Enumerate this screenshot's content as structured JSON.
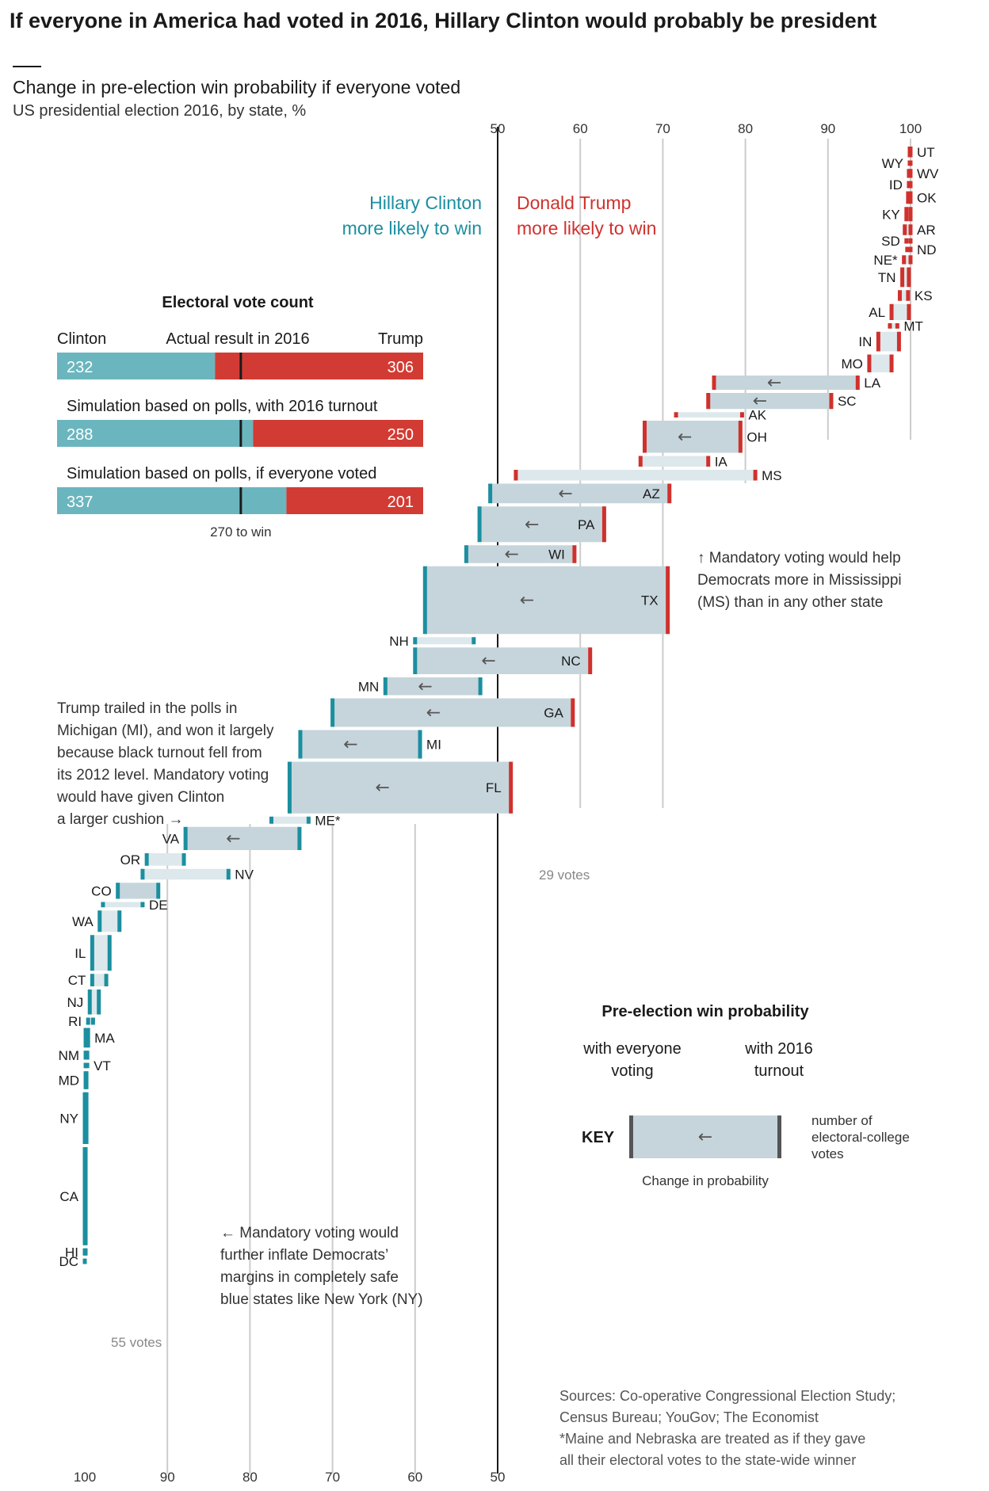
{
  "title": "If everyone in America had voted in 2016, Hillary Clinton would probably be president",
  "subtitle": "Change in pre-election win probability if everyone voted",
  "subtitle2": "US presidential election 2016, by state, %",
  "colors": {
    "clinton": "#1b8fa0",
    "trump": "#d0312d",
    "bar_fill": "#c6d5db",
    "bar_fill_light": "#dde8ec",
    "clinton_ev": "#6bb6be",
    "trump_ev": "#d23b33",
    "grid": "#cccccc",
    "axis50": "#1a1a1a"
  },
  "side_labels": {
    "clinton": [
      "Hillary Clinton",
      "more likely to win"
    ],
    "trump": [
      "Donald Trump",
      "more likely to win"
    ]
  },
  "electoral": {
    "heading": "Electoral vote count",
    "clinton_label": "Clinton",
    "trump_label": "Trump",
    "win_label": "270 to win",
    "total": 538,
    "threshold": 270,
    "rows": [
      {
        "label": "Actual result in 2016",
        "clinton": 232,
        "trump": 306
      },
      {
        "label": "Simulation based on polls, with 2016 turnout",
        "clinton": 288,
        "trump": 250
      },
      {
        "label": "Simulation based on polls, if everyone voted",
        "clinton": 337,
        "trump": 201
      }
    ]
  },
  "annotations": {
    "ms": [
      "↑ Mandatory voting would help",
      "Democrats more in Mississippi",
      "(MS) than in any other state"
    ],
    "mi": [
      "Trump trailed in the polls in",
      "Michigan (MI), and won it largely",
      "because black turnout fell from",
      "its 2012 level. Mandatory voting",
      "would have given Clinton",
      "a larger cushion →"
    ],
    "ny": [
      "← Mandatory voting would",
      "further inflate Democrats’",
      "margins in completely safe",
      "blue states like New York (NY)"
    ],
    "fl_votes": "29 votes",
    "ca_votes": "55 votes"
  },
  "key": {
    "heading": "Pre-election win probability",
    "left": [
      "with everyone",
      "voting"
    ],
    "right": [
      "with 2016",
      "turnout"
    ],
    "label": "KEY",
    "votes": [
      "number of",
      "electoral-college",
      "votes"
    ],
    "change": "Change in probability"
  },
  "sources": [
    "Sources: Co-operative Congressional Election Study;",
    "Census Bureau; YouGov; The Economist",
    "*Maine and Nebraska are treated as if they gave",
    "all their electoral votes to the state-wide winner"
  ],
  "chart_data": {
    "type": "bar",
    "title": "Change in pre-election win probability if everyone voted",
    "subtitle": "US presidential election 2016, by state, %",
    "x_axis_top": {
      "ticks": [
        50,
        60,
        70,
        80,
        90,
        100
      ],
      "meaning": "Trump win probability"
    },
    "x_axis_bottom": {
      "ticks": [
        100,
        90,
        80,
        70,
        60,
        50
      ],
      "meaning": "Clinton win probability"
    },
    "states": [
      {
        "state": "UT",
        "turnout2016": 100,
        "everyone": 99.9,
        "ev": 6,
        "winner": "R"
      },
      {
        "state": "WY",
        "turnout2016": 100,
        "everyone": 99.9,
        "ev": 3,
        "winner": "R"
      },
      {
        "state": "WV",
        "turnout2016": 100,
        "everyone": 99.8,
        "ev": 5,
        "winner": "R"
      },
      {
        "state": "ID",
        "turnout2016": 100,
        "everyone": 99.8,
        "ev": 4,
        "winner": "R"
      },
      {
        "state": "OK",
        "turnout2016": 100,
        "everyone": 99.7,
        "ev": 7,
        "winner": "R"
      },
      {
        "state": "KY",
        "turnout2016": 100,
        "everyone": 99.5,
        "ev": 8,
        "winner": "R"
      },
      {
        "state": "AR",
        "turnout2016": 100,
        "everyone": 99.3,
        "ev": 6,
        "winner": "R"
      },
      {
        "state": "SD",
        "turnout2016": 100,
        "everyone": 99.5,
        "ev": 3,
        "winner": "R"
      },
      {
        "state": "ND",
        "turnout2016": 100,
        "everyone": 99.6,
        "ev": 3,
        "winner": "R"
      },
      {
        "state": "NE*",
        "turnout2016": 100,
        "everyone": 99.2,
        "ev": 5,
        "winner": "R"
      },
      {
        "state": "TN",
        "turnout2016": 99.8,
        "everyone": 99.0,
        "ev": 11,
        "winner": "R"
      },
      {
        "state": "KS",
        "turnout2016": 99.7,
        "everyone": 98.7,
        "ev": 6,
        "winner": "R"
      },
      {
        "state": "AL",
        "turnout2016": 99.8,
        "everyone": 97.7,
        "ev": 9,
        "winner": "R"
      },
      {
        "state": "MT",
        "turnout2016": 98.4,
        "everyone": 97.5,
        "ev": 3,
        "winner": "R"
      },
      {
        "state": "IN",
        "turnout2016": 98.6,
        "everyone": 96.1,
        "ev": 11,
        "winner": "R"
      },
      {
        "state": "MO",
        "turnout2016": 97.7,
        "everyone": 95.0,
        "ev": 10,
        "winner": "R"
      },
      {
        "state": "LA",
        "turnout2016": 93.6,
        "everyone": 76.2,
        "ev": 8,
        "winner": "R"
      },
      {
        "state": "SC",
        "turnout2016": 90.4,
        "everyone": 75.5,
        "ev": 9,
        "winner": "R"
      },
      {
        "state": "AK",
        "turnout2016": 79.6,
        "everyone": 71.6,
        "ev": 3,
        "winner": "R"
      },
      {
        "state": "OH",
        "turnout2016": 79.4,
        "everyone": 67.8,
        "ev": 18,
        "winner": "R"
      },
      {
        "state": "IA",
        "turnout2016": 75.5,
        "everyone": 67.3,
        "ev": 6,
        "winner": "R"
      },
      {
        "state": "MS",
        "turnout2016": 81.2,
        "everyone": 52.2,
        "ev": 6,
        "winner": "R"
      },
      {
        "state": "AZ",
        "turnout2016": 70.8,
        "everyone": 49.1,
        "ev": 11,
        "winner": "R"
      },
      {
        "state": "PA",
        "turnout2016": 62.9,
        "everyone": 47.8,
        "ev": 20,
        "winner": "R"
      },
      {
        "state": "WI",
        "turnout2016": 59.3,
        "everyone": 46.2,
        "ev": 10,
        "winner": "R"
      },
      {
        "state": "TX",
        "turnout2016": 70.6,
        "everyone": 41.2,
        "ev": 38,
        "winner": "R"
      },
      {
        "state": "NH",
        "turnout2016": 47.1,
        "everyone": 40.0,
        "ev": 4,
        "winner": "D"
      },
      {
        "state": "NC",
        "turnout2016": 61.2,
        "everyone": 40.0,
        "ev": 15,
        "winner": "R"
      },
      {
        "state": "MN",
        "turnout2016": 47.9,
        "everyone": 36.4,
        "ev": 10,
        "winner": "D"
      },
      {
        "state": "GA",
        "turnout2016": 59.1,
        "everyone": 30.0,
        "ev": 16,
        "winner": "R"
      },
      {
        "state": "MI",
        "turnout2016": 40.6,
        "everyone": 26.1,
        "ev": 16,
        "winner": "R"
      },
      {
        "state": "FL",
        "turnout2016": 51.6,
        "everyone": 24.8,
        "ev": 29,
        "winner": "R"
      },
      {
        "state": "ME*",
        "turnout2016": 27.1,
        "everyone": 22.6,
        "ev": 4,
        "winner": "D"
      },
      {
        "state": "VA",
        "turnout2016": 26.0,
        "everyone": 12.2,
        "ev": 13,
        "winner": "D"
      },
      {
        "state": "OR",
        "turnout2016": 12.0,
        "everyone": 7.5,
        "ev": 7,
        "winner": "D"
      },
      {
        "state": "NV",
        "turnout2016": 17.4,
        "everyone": 7.0,
        "ev": 6,
        "winner": "D"
      },
      {
        "state": "CO",
        "turnout2016": 8.9,
        "everyone": 4.0,
        "ev": 9,
        "winner": "D"
      },
      {
        "state": "DE",
        "turnout2016": 7.0,
        "everyone": 2.2,
        "ev": 3,
        "winner": "D"
      },
      {
        "state": "WA",
        "turnout2016": 4.2,
        "everyone": 1.8,
        "ev": 12,
        "winner": "D"
      },
      {
        "state": "IL",
        "turnout2016": 3.0,
        "everyone": 0.9,
        "ev": 20,
        "winner": "D"
      },
      {
        "state": "CT",
        "turnout2016": 2.6,
        "everyone": 0.9,
        "ev": 7,
        "winner": "D"
      },
      {
        "state": "NJ",
        "turnout2016": 1.7,
        "everyone": 0.6,
        "ev": 14,
        "winner": "D"
      },
      {
        "state": "RI",
        "turnout2016": 1.0,
        "everyone": 0.4,
        "ev": 4,
        "winner": "D"
      },
      {
        "state": "MA",
        "turnout2016": 0.4,
        "everyone": 0.1,
        "ev": 11,
        "winner": "D"
      },
      {
        "state": "NM",
        "turnout2016": 0.3,
        "everyone": 0.1,
        "ev": 5,
        "winner": "D"
      },
      {
        "state": "VT",
        "turnout2016": 0.3,
        "everyone": 0.1,
        "ev": 3,
        "winner": "D"
      },
      {
        "state": "MD",
        "turnout2016": 0.2,
        "everyone": 0.1,
        "ev": 10,
        "winner": "D"
      },
      {
        "state": "NY",
        "turnout2016": 0.2,
        "everyone": 0.0,
        "ev": 29,
        "winner": "D"
      },
      {
        "state": "CA",
        "turnout2016": 0.1,
        "everyone": 0.0,
        "ev": 55,
        "winner": "D"
      },
      {
        "state": "HI",
        "turnout2016": 0.1,
        "everyone": 0.0,
        "ev": 4,
        "winner": "D"
      },
      {
        "state": "DC",
        "turnout2016": 0.0,
        "everyone": 0.0,
        "ev": 3,
        "winner": "D"
      }
    ]
  }
}
